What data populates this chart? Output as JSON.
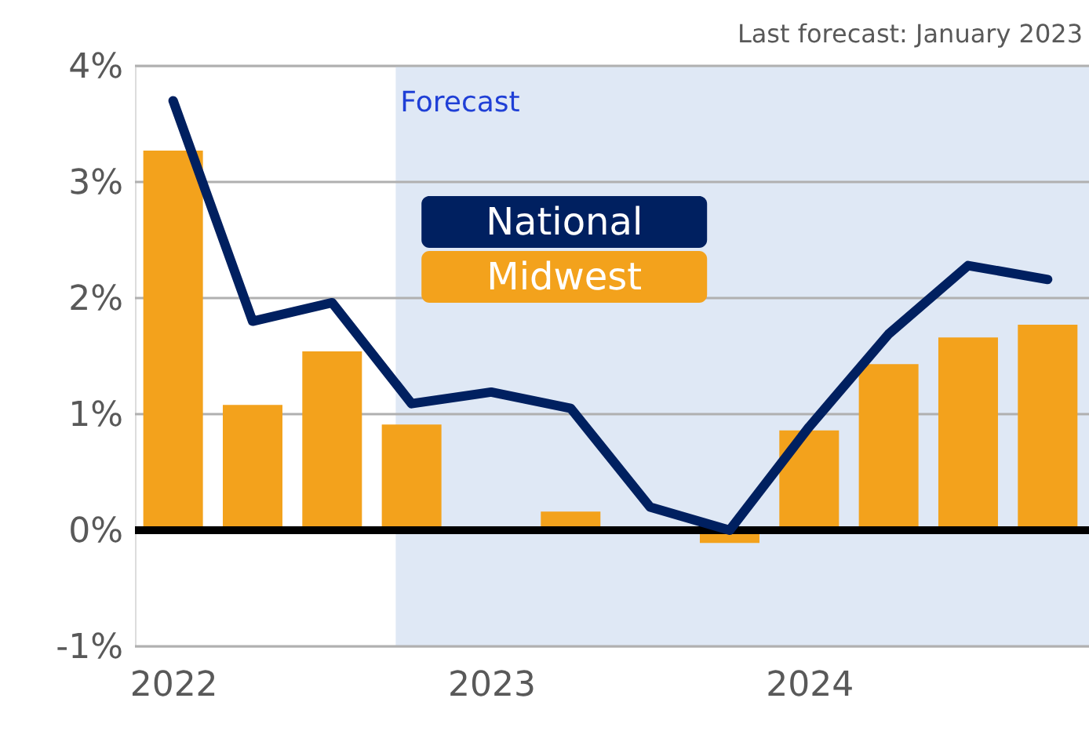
{
  "chart_data": {
    "type": "bar",
    "x": [
      2022,
      2022.25,
      2022.5,
      2022.75,
      2023,
      2023.25,
      2023.5,
      2023.75,
      2024,
      2024.25,
      2024.5,
      2024.75
    ],
    "series": [
      {
        "name": "National",
        "type": "line",
        "color": "#002060",
        "values": [
          3.7,
          1.8,
          1.96,
          1.09,
          1.19,
          1.05,
          0.2,
          0.0,
          0.89,
          1.69,
          2.28,
          2.16
        ]
      },
      {
        "name": "Midwest",
        "color": "#f3a21c",
        "values": [
          3.27,
          1.08,
          1.54,
          0.91,
          null,
          0.16,
          null,
          -0.11,
          0.86,
          1.43,
          1.66,
          1.77
        ]
      }
    ],
    "xlim": [
      2021.88,
      2024.88
    ],
    "xticks": [
      2022,
      2023,
      2024
    ],
    "ylim": [
      -1,
      4
    ],
    "yticks": [
      {
        "value": -1,
        "label": "-1%"
      },
      {
        "value": 0,
        "label": "0%"
      },
      {
        "value": 1,
        "label": "1%"
      },
      {
        "value": 2,
        "label": "2%"
      },
      {
        "value": 3,
        "label": "3%"
      },
      {
        "value": 4,
        "label": "4%"
      }
    ],
    "bands": [
      {
        "axis": "x",
        "from": 2022.7,
        "to": 2024.88,
        "label": "Forecast",
        "color": "#dfe8f5"
      }
    ],
    "ref_lines": [
      {
        "axis": "y",
        "value": 0,
        "color": "#000000"
      }
    ],
    "annotations": [
      "Last forecast: January 2023"
    ],
    "grid": "y",
    "legend": "top"
  }
}
